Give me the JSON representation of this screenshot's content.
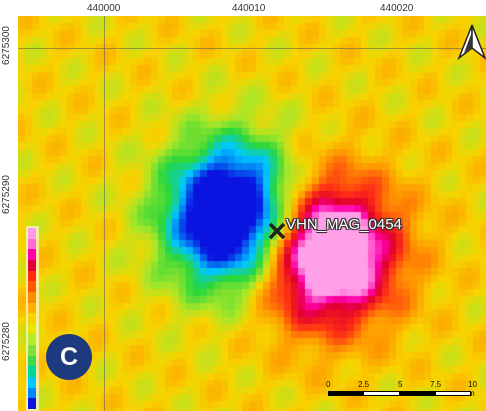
{
  "map": {
    "x_ticks": [
      "440000",
      "440010",
      "440020"
    ],
    "y_ticks": [
      "6275300",
      "6275290",
      "6275280"
    ],
    "marker_label": "VHN_MAG_0454",
    "panel_badge": "C"
  },
  "scalebar": {
    "labels": [
      "0",
      "2.5",
      "5",
      "7.5",
      "10 m"
    ]
  },
  "colors": {
    "background": "#f7d400",
    "low_core": "#0a15e0",
    "high_core": "#ff9ce8",
    "badge": "#1e3a7e"
  },
  "icons": {
    "north_arrow": "north-arrow-icon",
    "marker": "cross-marker-icon"
  }
}
